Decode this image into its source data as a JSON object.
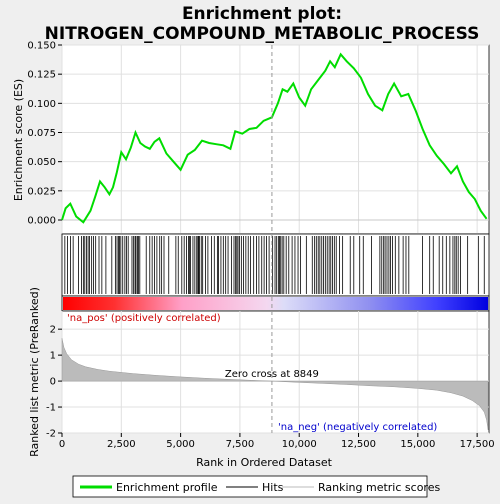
{
  "chart_data": {
    "type": "line",
    "title": "Enrichment plot:",
    "subtitle": "NITROGEN_COMPOUND_METABOLIC_PROCESS",
    "xlabel": "Rank in Ordered Dataset",
    "ylabel_top": "Enrichment score (ES)",
    "ylabel_bottom": "Ranked list metric (PreRanked)",
    "xlim": [
      0,
      18000
    ],
    "x_ticks": [
      0,
      2500,
      5000,
      7500,
      10000,
      12500,
      15000,
      17500
    ],
    "x_tick_labels": [
      "0",
      "2,500",
      "5,000",
      "7,500",
      "10,000",
      "12,500",
      "15,000",
      "17,500"
    ],
    "es_ylim": [
      -0.012,
      0.15
    ],
    "es_ticks": [
      0.0,
      0.025,
      0.05,
      0.075,
      0.1,
      0.125,
      0.15
    ],
    "es_tick_labels": [
      "0.000",
      "0.025",
      "0.050",
      "0.075",
      "0.100",
      "0.125",
      "0.150"
    ],
    "metric_ylim": [
      -2.0,
      2.7
    ],
    "metric_ticks": [
      -2,
      -1,
      0,
      1,
      2
    ],
    "metric_tick_labels": [
      "-2",
      "-1",
      "0",
      "1",
      "2"
    ],
    "enrichment_profile": {
      "x": [
        0,
        150,
        350,
        600,
        900,
        1200,
        1400,
        1600,
        1800,
        2000,
        2150,
        2300,
        2500,
        2700,
        2900,
        3100,
        3300,
        3500,
        3700,
        3900,
        4100,
        4400,
        4700,
        5000,
        5300,
        5600,
        5900,
        6200,
        6500,
        6800,
        7100,
        7300,
        7600,
        7900,
        8200,
        8500,
        8850,
        9100,
        9300,
        9500,
        9750,
        10000,
        10250,
        10500,
        10800,
        11100,
        11300,
        11500,
        11750,
        12000,
        12300,
        12600,
        12900,
        13200,
        13500,
        13750,
        14000,
        14300,
        14600,
        14900,
        15200,
        15500,
        15800,
        16100,
        16400,
        16650,
        16900,
        17150,
        17400,
        17650,
        17900
      ],
      "y": [
        0.0,
        0.01,
        0.014,
        0.003,
        -0.002,
        0.008,
        0.02,
        0.033,
        0.028,
        0.022,
        0.028,
        0.04,
        0.058,
        0.052,
        0.062,
        0.075,
        0.066,
        0.063,
        0.061,
        0.067,
        0.07,
        0.057,
        0.05,
        0.043,
        0.056,
        0.06,
        0.068,
        0.066,
        0.065,
        0.064,
        0.061,
        0.076,
        0.074,
        0.078,
        0.079,
        0.085,
        0.088,
        0.1,
        0.112,
        0.11,
        0.117,
        0.105,
        0.098,
        0.112,
        0.12,
        0.128,
        0.136,
        0.131,
        0.142,
        0.136,
        0.13,
        0.122,
        0.108,
        0.098,
        0.094,
        0.108,
        0.117,
        0.106,
        0.108,
        0.094,
        0.078,
        0.064,
        0.055,
        0.048,
        0.04,
        0.046,
        0.033,
        0.024,
        0.018,
        0.008,
        0.001
      ]
    },
    "hits_x": [
      120,
      230,
      360,
      470,
      700,
      820,
      900,
      960,
      1030,
      1100,
      1160,
      1250,
      1330,
      1420,
      1560,
      1680,
      1850,
      2100,
      2250,
      2320,
      2380,
      2420,
      2480,
      2560,
      2650,
      2720,
      2790,
      2950,
      3020,
      3080,
      3120,
      3180,
      3230,
      3280,
      3550,
      3700,
      3800,
      3900,
      4000,
      4120,
      4200,
      4300,
      4500,
      4800,
      4900,
      5050,
      5150,
      5250,
      5330,
      5380,
      5420,
      5520,
      5600,
      5680,
      5730,
      5760,
      5800,
      5870,
      5930,
      6050,
      6150,
      6300,
      6420,
      6550,
      6600,
      6700,
      6800,
      6900,
      7000,
      7150,
      7250,
      7320,
      7370,
      7420,
      7480,
      7560,
      7650,
      7750,
      7850,
      7950,
      8080,
      8200,
      8300,
      8420,
      8520,
      8620,
      8730,
      8880,
      8980,
      9050,
      9120,
      9170,
      9220,
      9280,
      9350,
      9450,
      9560,
      9700,
      9820,
      9950,
      10050,
      10300,
      10550,
      10650,
      10720,
      10800,
      10870,
      10950,
      11020,
      11100,
      11180,
      11260,
      11330,
      11400,
      11480,
      11560,
      11700,
      11830,
      12150,
      12300,
      12550,
      12700,
      13050,
      13400,
      13480,
      13560,
      13620,
      13700,
      13780,
      13850,
      13930,
      14050,
      14200,
      14380,
      14500,
      14620,
      15200,
      15500,
      15650,
      15900,
      16050,
      16200,
      16350,
      16480,
      16560,
      16620,
      16700,
      16800,
      17100,
      17550,
      17800
    ],
    "metric_profile": {
      "x": [
        0,
        80,
        200,
        400,
        700,
        1000,
        1500,
        2000,
        3000,
        4000,
        5000,
        6000,
        7000,
        8000,
        8849,
        10000,
        11000,
        12000,
        13000,
        14000,
        15000,
        15800,
        16400,
        16900,
        17300,
        17600,
        17800,
        17900,
        17960
      ],
      "y": [
        1.65,
        1.3,
        1.05,
        0.82,
        0.65,
        0.55,
        0.45,
        0.38,
        0.29,
        0.22,
        0.16,
        0.11,
        0.07,
        0.03,
        0.0,
        -0.05,
        -0.09,
        -0.13,
        -0.18,
        -0.22,
        -0.28,
        -0.35,
        -0.45,
        -0.58,
        -0.75,
        -0.95,
        -1.2,
        -1.5,
        -1.88
      ]
    },
    "zero_cross": 8849,
    "zero_cross_label": "Zero cross at 8849",
    "pos_label": "'na_pos' (positively correlated)",
    "neg_label": "'na_neg' (negatively correlated)",
    "legend": {
      "placement": "bottom",
      "items": [
        {
          "label": "Enrichment profile",
          "color": "#00dd00"
        },
        {
          "label": "Hits",
          "color": "#000000"
        },
        {
          "label": "Ranking metric scores",
          "color": "#bbbbbb"
        }
      ]
    },
    "colors": {
      "profile": "#00dd00",
      "hits": "#000000",
      "metric_fill": "#bbbbbb",
      "pos_text": "#cc0000",
      "neg_text": "#0000cc",
      "bar_pos": "#ff0000",
      "bar_neg": "#0000ff"
    }
  }
}
